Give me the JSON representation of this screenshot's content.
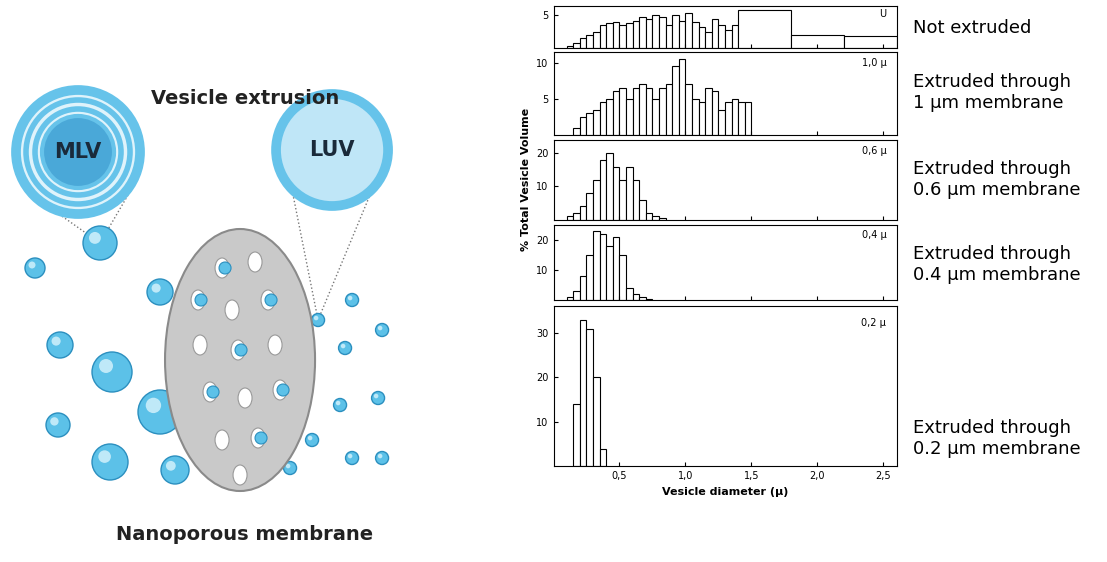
{
  "diagram": {
    "title": "Vesicle extrusion",
    "left_label": "MLV",
    "right_label": "LUV",
    "membrane_label": "Nanoporous membrane"
  },
  "chart_data": [
    {
      "type": "histogram",
      "title": "U",
      "annotation": "Not extruded",
      "bins": [
        0.1,
        0.15,
        0.2,
        0.25,
        0.3,
        0.35,
        0.4,
        0.45,
        0.5,
        0.55,
        0.6,
        0.65,
        0.7,
        0.75,
        0.8,
        0.85,
        0.9,
        0.95,
        1.0,
        1.05,
        1.1,
        1.15,
        1.2,
        1.25,
        1.3,
        1.35,
        1.4,
        1.8,
        2.2,
        2.6
      ],
      "values": [
        0.3,
        0.7,
        1.5,
        2,
        2.5,
        3.5,
        3.8,
        4,
        3.5,
        3.8,
        4.2,
        4.8,
        4.5,
        5,
        4.8,
        3.5,
        5,
        4.2,
        5.3,
        4,
        3.2,
        2.5,
        4.5,
        3.5,
        2.8,
        3.5,
        5.8,
        2,
        1.8
      ],
      "xlim": [
        0,
        2.6
      ],
      "xticks": [
        {
          "value": 0.5,
          "label": "0,5"
        },
        {
          "value": 1.0,
          "label": "1,0"
        },
        {
          "value": 1.5,
          "label": "1,5"
        },
        {
          "value": 2.0,
          "label": "2,0"
        },
        {
          "value": 2.5,
          "label": "2,5"
        }
      ],
      "ylim": [
        0,
        6.5
      ],
      "yticks": [
        5
      ],
      "tick_labels": "y"
    },
    {
      "type": "histogram",
      "title": "1,0 μ",
      "annotation": "Extruded through\n1 μm membrane",
      "bins": [
        0.15,
        0.2,
        0.25,
        0.3,
        0.35,
        0.4,
        0.45,
        0.5,
        0.55,
        0.6,
        0.65,
        0.7,
        0.75,
        0.8,
        0.85,
        0.9,
        0.95,
        1.0,
        1.05,
        1.1,
        1.15,
        1.2,
        1.25,
        1.3,
        1.35,
        1.4,
        1.45,
        1.5
      ],
      "values": [
        1,
        2.5,
        3,
        3.5,
        4.5,
        5,
        6,
        6.5,
        5,
        6.5,
        7,
        6.5,
        5,
        6.5,
        7,
        9.5,
        10.5,
        7,
        5,
        4.5,
        6.5,
        6,
        3.5,
        4.5,
        5,
        4.5,
        4.5
      ],
      "xlim": [
        0,
        2.6
      ],
      "xticks": [
        {
          "value": 0.5,
          "label": "0,5"
        },
        {
          "value": 1.0,
          "label": "1,0"
        },
        {
          "value": 1.5,
          "label": "1,5"
        },
        {
          "value": 2.0,
          "label": "2,0"
        },
        {
          "value": 2.5,
          "label": "2,5"
        }
      ],
      "ylim": [
        0,
        11.5
      ],
      "yticks": [
        5,
        10
      ],
      "tick_labels": "y"
    },
    {
      "type": "histogram",
      "title": "0,6 μ",
      "annotation": "Extruded through\n0.6 μm membrane",
      "y_label": "% Total Vesicle Volume",
      "bins": [
        0.1,
        0.15,
        0.2,
        0.25,
        0.3,
        0.35,
        0.4,
        0.45,
        0.5,
        0.55,
        0.6,
        0.65,
        0.7,
        0.75,
        0.8,
        0.85
      ],
      "values": [
        1,
        2,
        4,
        8,
        12,
        18,
        20,
        16,
        12,
        16,
        12,
        6,
        2,
        1,
        0.5
      ],
      "xlim": [
        0,
        2.6
      ],
      "xticks": [
        {
          "value": 0.5,
          "label": "0,5"
        },
        {
          "value": 1.0,
          "label": "1,0"
        },
        {
          "value": 1.5,
          "label": "1,5"
        },
        {
          "value": 2.0,
          "label": "2,0"
        },
        {
          "value": 2.5,
          "label": "2,5"
        }
      ],
      "ylim": [
        0,
        24
      ],
      "yticks": [
        10,
        20
      ],
      "tick_labels": "y"
    },
    {
      "type": "histogram",
      "title": "0,4 μ",
      "annotation": "Extruded through\n0.4 μm membrane",
      "bins": [
        0.1,
        0.15,
        0.2,
        0.25,
        0.3,
        0.35,
        0.4,
        0.45,
        0.5,
        0.55,
        0.6,
        0.65,
        0.7,
        0.75
      ],
      "values": [
        1,
        3,
        8,
        15,
        23,
        22,
        18,
        21,
        15,
        4,
        2,
        1,
        0.5
      ],
      "xlim": [
        0,
        2.6
      ],
      "xticks": [
        {
          "value": 0.5,
          "label": "0,5"
        },
        {
          "value": 1.0,
          "label": "1,0"
        },
        {
          "value": 1.5,
          "label": "1,5"
        },
        {
          "value": 2.0,
          "label": "2,0"
        },
        {
          "value": 2.5,
          "label": "2,5"
        }
      ],
      "ylim": [
        0,
        25
      ],
      "yticks": [
        10,
        20
      ],
      "tick_labels": "y"
    },
    {
      "type": "histogram",
      "title": "0,2 μ",
      "annotation": "Extruded through\n0.2 μm membrane",
      "x_label": "Vesicle diameter (μ)",
      "bins": [
        0.15,
        0.2,
        0.25,
        0.3,
        0.35,
        0.4
      ],
      "values": [
        14,
        33,
        31,
        20,
        4
      ],
      "xlim": [
        0,
        2.6
      ],
      "xticks": [
        {
          "value": 0.5,
          "label": "0,5"
        },
        {
          "value": 1.0,
          "label": "1,0"
        },
        {
          "value": 1.5,
          "label": "1,5"
        },
        {
          "value": 2.0,
          "label": "2,0"
        },
        {
          "value": 2.5,
          "label": "2,5"
        }
      ],
      "ylim": [
        0,
        36
      ],
      "yticks": [
        10,
        20,
        30
      ]
    }
  ]
}
